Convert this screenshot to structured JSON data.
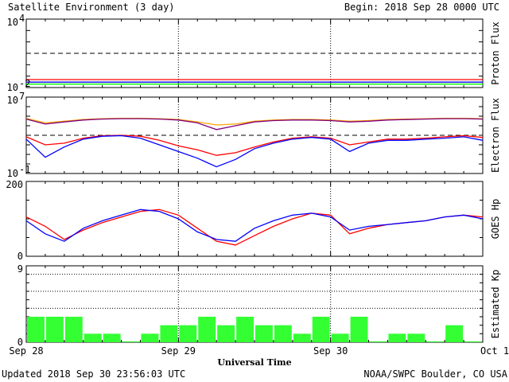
{
  "header": {
    "title": "Satellite Environment (3 day)",
    "begin": "Begin:  2018 Sep 28 0000 UTC"
  },
  "footer": {
    "updated": "Updated 2018 Sep 30 23:56:03 UTC",
    "credit": "NOAA/SWPC Boulder, CO USA"
  },
  "colors": {
    "red": "#ff0000",
    "blue": "#0000ff",
    "green": "#00ff00",
    "orange": "#ffa500",
    "purple": "#7f007f",
    "kp_bar": "#33ff33"
  },
  "chart_data": [
    {
      "type": "line",
      "panel": "proton",
      "ylabel": "Proton Flux",
      "yscale": "log",
      "ylim": [
        0.01,
        10000
      ],
      "ytick_labels": [
        {
          "base": "10",
          "exp": "4"
        },
        {
          "base": "10",
          "exp": "-2"
        }
      ],
      "threshold": 10,
      "x_hours": [
        0,
        6,
        12,
        18,
        24,
        30,
        36,
        42,
        48,
        54,
        60,
        66,
        72
      ],
      "series": [
        {
          "color": "red",
          "values": [
            0.05,
            0.05,
            0.05,
            0.05,
            0.05,
            0.05,
            0.05,
            0.05,
            0.05,
            0.05,
            0.05,
            0.05,
            0.05
          ]
        },
        {
          "color": "blue",
          "values": [
            0.03,
            0.03,
            0.03,
            0.03,
            0.03,
            0.03,
            0.03,
            0.03,
            0.03,
            0.03,
            0.03,
            0.03,
            0.03
          ]
        },
        {
          "color": "green",
          "values": [
            0.02,
            0.02,
            0.02,
            0.02,
            0.02,
            0.02,
            0.02,
            0.02,
            0.02,
            0.02,
            0.02,
            0.02,
            0.02
          ]
        }
      ]
    },
    {
      "type": "line",
      "panel": "electron",
      "ylabel": "Electron Flux",
      "yscale": "log",
      "ylim": [
        0.1,
        10000000
      ],
      "ytick_labels": [
        {
          "base": "10",
          "exp": "7"
        },
        {
          "base": "10",
          "exp": "-1"
        }
      ],
      "threshold": 1000,
      "x_hours": [
        0,
        3,
        6,
        9,
        12,
        15,
        18,
        21,
        24,
        27,
        30,
        33,
        36,
        39,
        42,
        45,
        48,
        51,
        54,
        57,
        60,
        63,
        66,
        69,
        72
      ],
      "series": [
        {
          "color": "orange",
          "values": [
            60000,
            20000,
            30000,
            45000,
            55000,
            60000,
            60000,
            55000,
            45000,
            25000,
            12000,
            15000,
            30000,
            40000,
            45000,
            45000,
            40000,
            30000,
            35000,
            45000,
            50000,
            55000,
            60000,
            60000,
            55000
          ]
        },
        {
          "color": "purple",
          "values": [
            50000,
            15000,
            25000,
            40000,
            50000,
            55000,
            55000,
            50000,
            40000,
            20000,
            4000,
            10000,
            25000,
            35000,
            40000,
            40000,
            35000,
            25000,
            30000,
            40000,
            45000,
            50000,
            55000,
            55000,
            50000
          ]
        },
        {
          "color": "red",
          "values": [
            700,
            100,
            150,
            500,
            900,
            1000,
            800,
            300,
            80,
            30,
            8,
            15,
            60,
            200,
            500,
            700,
            500,
            100,
            200,
            400,
            400,
            500,
            700,
            900,
            600
          ]
        },
        {
          "color": "blue",
          "values": [
            400,
            5,
            60,
            400,
            800,
            900,
            500,
            100,
            20,
            4,
            0.5,
            3,
            40,
            150,
            400,
            600,
            400,
            20,
            150,
            300,
            300,
            400,
            500,
            700,
            300
          ]
        }
      ]
    },
    {
      "type": "line",
      "panel": "goes-hp",
      "ylabel": "GOES Hp",
      "ylim": [
        0,
        200
      ],
      "ytick_labels": [
        "200",
        "0"
      ],
      "x_hours": [
        0,
        3,
        6,
        9,
        12,
        15,
        18,
        21,
        24,
        27,
        30,
        33,
        36,
        39,
        42,
        45,
        48,
        51,
        54,
        57,
        60,
        63,
        66,
        69,
        72
      ],
      "series": [
        {
          "color": "red",
          "values": [
            105,
            80,
            45,
            70,
            90,
            105,
            120,
            125,
            110,
            75,
            40,
            30,
            55,
            80,
            100,
            115,
            110,
            60,
            75,
            85,
            90,
            95,
            105,
            110,
            105
          ]
        },
        {
          "color": "blue",
          "values": [
            95,
            60,
            40,
            75,
            95,
            110,
            125,
            120,
            100,
            65,
            45,
            40,
            75,
            95,
            110,
            115,
            105,
            70,
            80,
            85,
            90,
            95,
            105,
            110,
            100
          ]
        }
      ]
    },
    {
      "type": "bar",
      "panel": "kp",
      "ylabel": "Estimated Kp",
      "ylim": [
        0,
        9
      ],
      "ytick_labels": [
        "9",
        "0"
      ],
      "interval_hours": 3,
      "values": [
        3,
        3,
        3,
        1,
        1,
        0.1,
        1,
        2,
        2,
        3,
        2,
        3,
        2,
        2,
        1,
        3,
        1,
        3,
        0.1,
        1,
        1,
        0.1,
        2,
        0.1
      ]
    }
  ],
  "x_axis": {
    "title": "Universal Time",
    "ticks": [
      "Sep 28",
      "Sep 29",
      "Sep 30",
      "Oct 1"
    ]
  }
}
